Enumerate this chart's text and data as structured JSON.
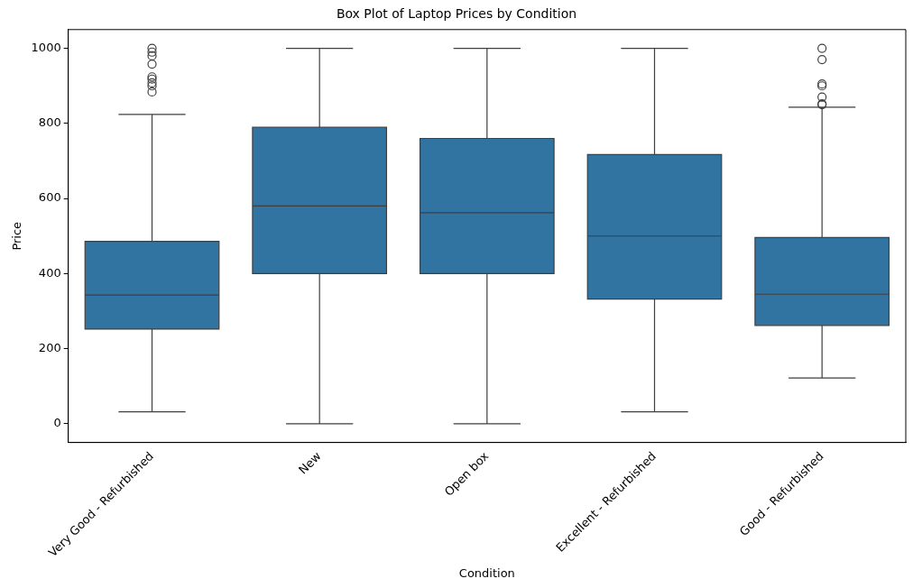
{
  "chart_data": {
    "type": "box",
    "title": "Box Plot of Laptop Prices by Condition",
    "xlabel": "Condition",
    "ylabel": "Price",
    "categories": [
      "Very Good - Refurbished",
      "New",
      "Open box",
      "Excellent - Refurbished",
      "Good - Refurbished"
    ],
    "ylim": [
      -50,
      1050
    ],
    "yticks": [
      0,
      200,
      400,
      600,
      800,
      1000
    ],
    "grid": false,
    "legend": false,
    "series": [
      {
        "color": "#3274a1",
        "boxes": [
          {
            "low": 32,
            "q1": 252,
            "median": 343,
            "q3": 486,
            "high": 824,
            "outliers": [
              1000,
              990,
              980,
              958,
              924,
              918,
              908,
              900,
              884
            ]
          },
          {
            "low": 0,
            "q1": 400,
            "median": 580,
            "q3": 790,
            "high": 1000
          },
          {
            "low": 0,
            "q1": 400,
            "median": 562,
            "q3": 760,
            "high": 1000
          },
          {
            "low": 32,
            "q1": 332,
            "median": 500,
            "q3": 717,
            "high": 1000
          },
          {
            "low": 122,
            "q1": 262,
            "median": 345,
            "q3": 496,
            "high": 843,
            "outliers": [
              1000,
              970,
              905,
              900,
              870,
              852,
              850
            ]
          }
        ]
      }
    ]
  }
}
